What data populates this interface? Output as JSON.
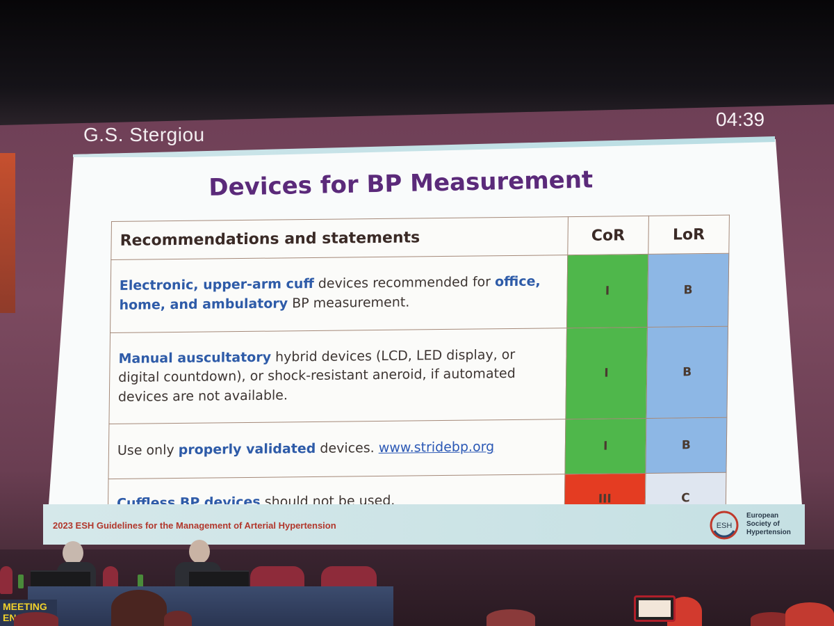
{
  "presenter": {
    "name": "G.S. Stergiou",
    "timer": "04:39"
  },
  "slide": {
    "title": "Devices for BP Measurement",
    "table": {
      "headers": {
        "recommendations": "Recommendations and statements",
        "cor": "CoR",
        "lor": "LoR"
      },
      "rows": [
        {
          "segments": [
            {
              "text": "Electronic, upper-arm cuff",
              "highlight": true
            },
            {
              "text": " devices recommended for ",
              "highlight": false
            },
            {
              "text": "office, home, and ambulatory",
              "highlight": true
            },
            {
              "text": " BP measurement.",
              "highlight": false
            }
          ],
          "cor": "I",
          "cor_color": "#4fb74b",
          "lor": "B",
          "lor_color": "#8db7e5"
        },
        {
          "segments": [
            {
              "text": "Manual auscultatory",
              "highlight": true
            },
            {
              "text": " hybrid devices (LCD, LED display, or digital countdown), or shock-resistant aneroid, if automated devices are not available.",
              "highlight": false
            }
          ],
          "cor": "I",
          "cor_color": "#4fb74b",
          "lor": "B",
          "lor_color": "#8db7e5"
        },
        {
          "segments": [
            {
              "text": "Use only ",
              "highlight": false
            },
            {
              "text": "properly validated",
              "highlight": true
            },
            {
              "text": " devices. ",
              "highlight": false
            },
            {
              "text": "www.stridebp.org",
              "link": true
            }
          ],
          "cor": "I",
          "cor_color": "#4fb74b",
          "lor": "B",
          "lor_color": "#8db7e5"
        },
        {
          "segments": [
            {
              "text": "Cuffless BP devices",
              "highlight": true
            },
            {
              "text": " should not be used.",
              "highlight": false
            }
          ],
          "cor": "III",
          "cor_color": "#e43c22",
          "lor": "C",
          "lor_color": "#dfe6f0"
        }
      ]
    },
    "footer": "2023 ESH Guidelines for the Management of Arterial Hypertension",
    "logo": {
      "mark": "ESH",
      "org_line1": "European",
      "org_line2": "Society of",
      "org_line3": "Hypertension"
    }
  },
  "stage": {
    "banner_line1": "MEETING",
    "banner_line2": "ENC"
  }
}
